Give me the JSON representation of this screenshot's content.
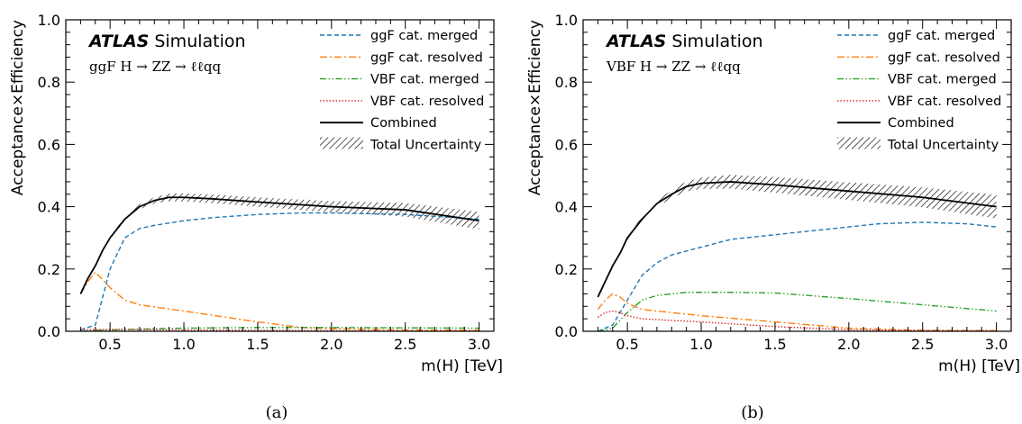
{
  "chart_data": [
    {
      "type": "line",
      "caption": "(a)",
      "experiment_label": "ATLAS",
      "experiment_sublabel": "Simulation",
      "process": "ggF H → ZZ → ℓℓqq",
      "xlabel": "m(H) [TeV]",
      "ylabel": "Acceptance×Efficiency",
      "xlim": [
        0.2,
        3.1
      ],
      "ylim": [
        0.0,
        1.0
      ],
      "xticks": [
        "0.5",
        "1.0",
        "1.5",
        "2.0",
        "2.5",
        "3.0"
      ],
      "yticks": [
        "0.0",
        "0.2",
        "0.4",
        "0.6",
        "0.8",
        "1.0"
      ],
      "legend_position": "top-right",
      "series": [
        {
          "name": "ggF cat. merged",
          "color": "#1f77b4",
          "style": "dashed",
          "x": [
            0.3,
            0.4,
            0.5,
            0.6,
            0.7,
            0.8,
            1.0,
            1.2,
            1.5,
            1.8,
            2.0,
            2.5,
            3.0
          ],
          "y": [
            0.005,
            0.02,
            0.2,
            0.3,
            0.33,
            0.34,
            0.355,
            0.365,
            0.375,
            0.38,
            0.38,
            0.375,
            0.36
          ]
        },
        {
          "name": "ggF cat. resolved",
          "color": "#ff7f0e",
          "style": "dashdot",
          "x": [
            0.3,
            0.35,
            0.4,
            0.5,
            0.6,
            0.7,
            1.0,
            1.5,
            1.8,
            2.0,
            2.5,
            3.0
          ],
          "y": [
            0.12,
            0.16,
            0.19,
            0.14,
            0.1,
            0.085,
            0.065,
            0.03,
            0.012,
            0.008,
            0.004,
            0.003
          ]
        },
        {
          "name": "VBF cat. merged",
          "color": "#2ca02c",
          "style": "dashdotdot",
          "x": [
            0.3,
            0.5,
            0.8,
            1.0,
            1.5,
            2.0,
            2.5,
            3.0
          ],
          "y": [
            0.0,
            0.004,
            0.008,
            0.01,
            0.012,
            0.012,
            0.011,
            0.01
          ]
        },
        {
          "name": "VBF cat. resolved",
          "color": "#d62728",
          "style": "dotted",
          "x": [
            0.3,
            0.5,
            0.8,
            1.0,
            1.5,
            2.0,
            2.5,
            3.0
          ],
          "y": [
            0.005,
            0.006,
            0.005,
            0.004,
            0.003,
            0.002,
            0.001,
            0.001
          ]
        },
        {
          "name": "Combined",
          "color": "#000000",
          "style": "solid",
          "x": [
            0.3,
            0.35,
            0.4,
            0.45,
            0.5,
            0.55,
            0.6,
            0.7,
            0.8,
            0.9,
            1.0,
            1.2,
            1.5,
            2.0,
            2.5,
            3.0
          ],
          "y": [
            0.12,
            0.17,
            0.21,
            0.26,
            0.3,
            0.33,
            0.36,
            0.4,
            0.42,
            0.43,
            0.43,
            0.425,
            0.415,
            0.4,
            0.39,
            0.355
          ],
          "uncertainty_band": [
            0.002,
            0.003,
            0.004,
            0.004,
            0.005,
            0.005,
            0.006,
            0.008,
            0.01,
            0.012,
            0.013,
            0.014,
            0.015,
            0.018,
            0.022,
            0.028
          ]
        }
      ],
      "legend_extra": [
        "Total Uncertainty"
      ]
    },
    {
      "type": "line",
      "caption": "(b)",
      "experiment_label": "ATLAS",
      "experiment_sublabel": "Simulation",
      "process": "VBF H → ZZ → ℓℓqq",
      "xlabel": "m(H) [TeV]",
      "ylabel": "Acceptance×Efficiency",
      "xlim": [
        0.2,
        3.1
      ],
      "ylim": [
        0.0,
        1.0
      ],
      "xticks": [
        "0.5",
        "1.0",
        "1.5",
        "2.0",
        "2.5",
        "3.0"
      ],
      "yticks": [
        "0.0",
        "0.2",
        "0.4",
        "0.6",
        "0.8",
        "1.0"
      ],
      "legend_position": "top-right",
      "series": [
        {
          "name": "ggF cat. merged",
          "color": "#1f77b4",
          "style": "dashed",
          "x": [
            0.3,
            0.4,
            0.5,
            0.6,
            0.7,
            0.8,
            1.0,
            1.2,
            1.5,
            2.0,
            2.2,
            2.5,
            2.8,
            3.0
          ],
          "y": [
            0.0,
            0.02,
            0.1,
            0.18,
            0.22,
            0.245,
            0.27,
            0.295,
            0.31,
            0.335,
            0.345,
            0.35,
            0.345,
            0.335
          ]
        },
        {
          "name": "ggF cat. resolved",
          "color": "#ff7f0e",
          "style": "dashdot",
          "x": [
            0.3,
            0.35,
            0.4,
            0.45,
            0.5,
            0.6,
            0.8,
            1.0,
            1.5,
            2.0,
            2.5,
            3.0
          ],
          "y": [
            0.07,
            0.1,
            0.12,
            0.11,
            0.09,
            0.07,
            0.06,
            0.05,
            0.03,
            0.01,
            0.003,
            0.002
          ]
        },
        {
          "name": "VBF cat. merged",
          "color": "#2ca02c",
          "style": "dashdotdot",
          "x": [
            0.3,
            0.4,
            0.5,
            0.6,
            0.7,
            0.8,
            0.9,
            1.0,
            1.2,
            1.5,
            2.0,
            2.5,
            3.0
          ],
          "y": [
            0.0,
            0.01,
            0.06,
            0.1,
            0.115,
            0.12,
            0.125,
            0.125,
            0.125,
            0.123,
            0.105,
            0.085,
            0.065
          ]
        },
        {
          "name": "VBF cat. resolved",
          "color": "#d62728",
          "style": "dotted",
          "x": [
            0.3,
            0.35,
            0.4,
            0.45,
            0.5,
            0.6,
            0.8,
            1.0,
            1.5,
            2.0,
            2.5,
            3.0
          ],
          "y": [
            0.045,
            0.06,
            0.065,
            0.06,
            0.05,
            0.04,
            0.035,
            0.03,
            0.015,
            0.005,
            0.002,
            0.001
          ]
        },
        {
          "name": "Combined",
          "color": "#000000",
          "style": "solid",
          "x": [
            0.3,
            0.35,
            0.4,
            0.45,
            0.5,
            0.55,
            0.6,
            0.7,
            0.8,
            0.9,
            1.0,
            1.2,
            1.5,
            2.0,
            2.5,
            3.0
          ],
          "y": [
            0.11,
            0.16,
            0.21,
            0.25,
            0.3,
            0.33,
            0.36,
            0.41,
            0.44,
            0.465,
            0.475,
            0.48,
            0.47,
            0.45,
            0.43,
            0.4
          ],
          "uncertainty_band": [
            0.002,
            0.003,
            0.004,
            0.005,
            0.006,
            0.007,
            0.008,
            0.01,
            0.013,
            0.016,
            0.018,
            0.022,
            0.025,
            0.028,
            0.032,
            0.038
          ]
        }
      ],
      "legend_extra": [
        "Total Uncertainty"
      ]
    }
  ]
}
